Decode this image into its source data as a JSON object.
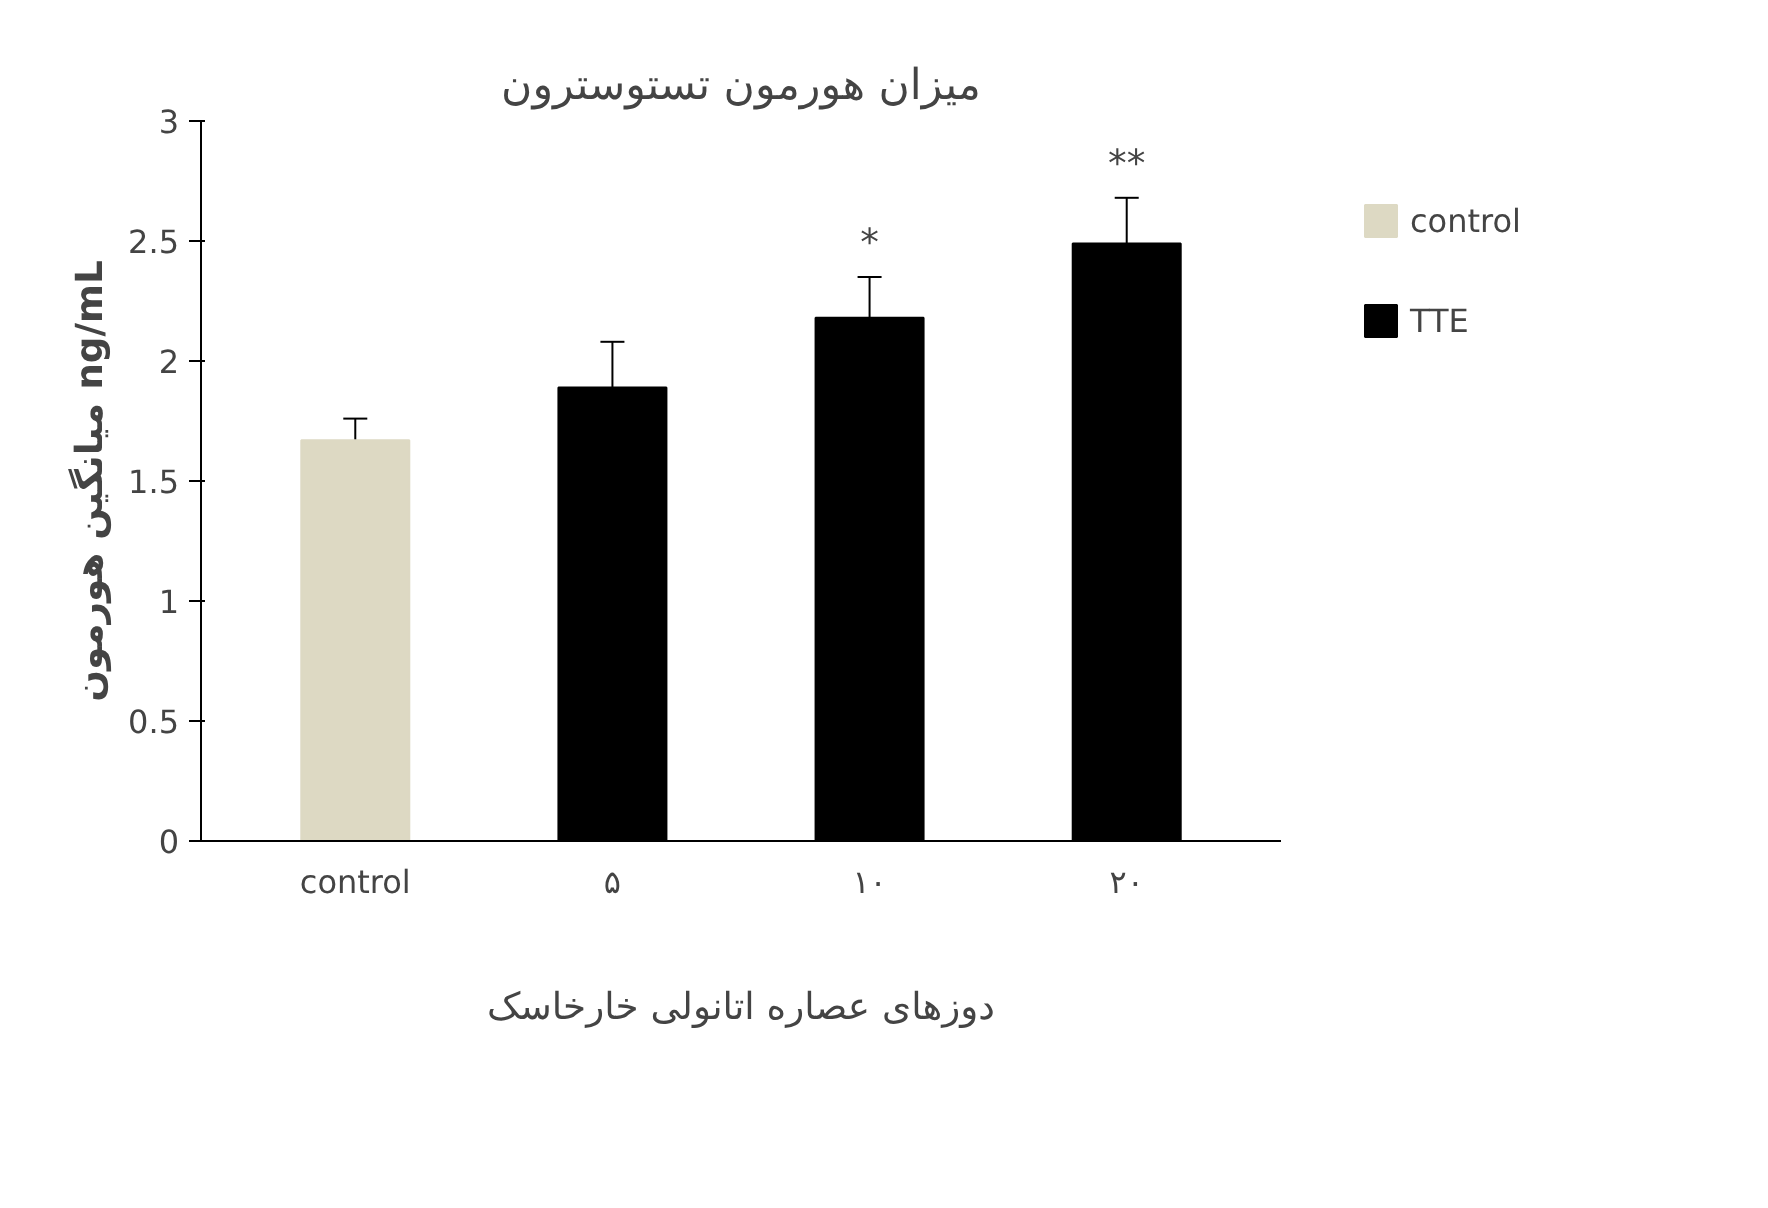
{
  "chart_data": {
    "type": "bar",
    "title": "میزان هورمون تستوسترون",
    "xlabel": "دوزهای عصاره اتانولی خارخاسک",
    "ylabel": "میانگین هورمون ng/mL",
    "categories": [
      "control",
      "۵",
      "۱۰",
      "۲۰"
    ],
    "series": [
      {
        "name": "control",
        "color": "#ddd9c3",
        "values": [
          1.67,
          null,
          null,
          null
        ],
        "errors": [
          0.09,
          null,
          null,
          null
        ]
      },
      {
        "name": "TTE",
        "color": "#000000",
        "values": [
          null,
          1.89,
          2.18,
          2.49
        ],
        "errors": [
          null,
          0.19,
          0.17,
          0.19
        ]
      }
    ],
    "ylim": [
      0,
      3
    ],
    "yticks": [
      0,
      0.5,
      1,
      1.5,
      2,
      2.5,
      3
    ],
    "grid": false,
    "legend": "top right",
    "annotations": [
      "*",
      "**"
    ]
  }
}
